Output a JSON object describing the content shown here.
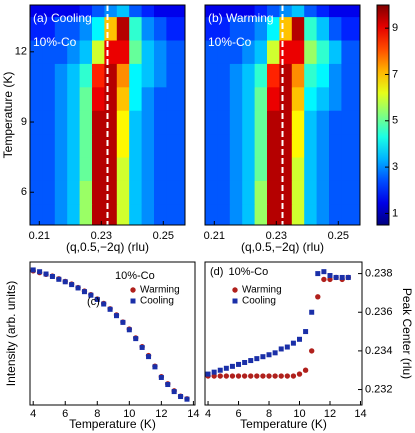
{
  "chart_data": [
    {
      "type": "heatmap",
      "panel_label": "(a) Cooling",
      "sample_label": "10%-Co",
      "x_label": "(q,0.5,−2q) (rlu)",
      "y_label": "Temperature (K)",
      "xlim": [
        0.207,
        0.257
      ],
      "xticks": [
        0.21,
        0.23,
        0.25
      ],
      "ylim": [
        4.6,
        14
      ],
      "yticks": [
        6,
        9,
        12
      ],
      "vline_x": 0.232,
      "x": [
        0.209,
        0.213,
        0.217,
        0.221,
        0.225,
        0.229,
        0.233,
        0.237,
        0.241,
        0.245,
        0.249,
        0.253,
        0.257
      ],
      "y": [
        5,
        6,
        7,
        8,
        9,
        10,
        11,
        12,
        13,
        14
      ],
      "z": [
        [
          2.5,
          2.5,
          3,
          3.5,
          5.5,
          9.5,
          9.5,
          6,
          3.5,
          3,
          2.5,
          2.5,
          2.5
        ],
        [
          2.5,
          2.5,
          3,
          3.5,
          5.5,
          9.5,
          9.5,
          6,
          3.5,
          3,
          2.5,
          2.5,
          2.5
        ],
        [
          2.5,
          2.5,
          3,
          3.5,
          5,
          9.5,
          9.5,
          6,
          3.5,
          3,
          2.5,
          2.5,
          2.5
        ],
        [
          2.5,
          2.5,
          3,
          3.5,
          5,
          9.5,
          9.5,
          6.5,
          3.5,
          3,
          2.5,
          2.5,
          2.5
        ],
        [
          2.5,
          2.5,
          3,
          3.5,
          5,
          9.5,
          9.5,
          6.5,
          3.5,
          3,
          2.5,
          2.5,
          2.5
        ],
        [
          2.5,
          2.5,
          3,
          3.5,
          5,
          9,
          9.5,
          7,
          4,
          3,
          2.5,
          2.5,
          2.5
        ],
        [
          2.5,
          2.5,
          3,
          3.5,
          4.5,
          8.5,
          9.5,
          7.5,
          4,
          3.5,
          3,
          2.5,
          2.5
        ],
        [
          2.5,
          2.5,
          2.5,
          3,
          3.5,
          6,
          9,
          9,
          5,
          3.5,
          3,
          2.5,
          2.5
        ],
        [
          2,
          2,
          2.5,
          2.5,
          3,
          4,
          7,
          9.5,
          4.5,
          3,
          2.5,
          2,
          2
        ],
        [
          1.5,
          1.5,
          1.5,
          1.5,
          2,
          2.5,
          3,
          3.5,
          2.5,
          2,
          1.5,
          1.5,
          1.5
        ]
      ]
    },
    {
      "type": "heatmap",
      "panel_label": "(b) Warming",
      "sample_label": "10%-Co",
      "x_label": "(q,0.5,−2q) (rlu)",
      "xlim": [
        0.207,
        0.257
      ],
      "xticks": [
        0.21,
        0.23,
        0.25
      ],
      "ylim": [
        4.6,
        14
      ],
      "vline_x": 0.232,
      "x": [
        0.209,
        0.213,
        0.217,
        0.221,
        0.225,
        0.229,
        0.233,
        0.237,
        0.241,
        0.245,
        0.249,
        0.253,
        0.257
      ],
      "y": [
        5,
        6,
        7,
        8,
        9,
        10,
        11,
        12,
        13,
        14
      ],
      "z": [
        [
          2.5,
          2.5,
          3,
          3.5,
          5.5,
          9.5,
          9.5,
          6,
          3.5,
          3,
          2.5,
          2.5,
          2.5
        ],
        [
          2.5,
          2.5,
          3,
          3.5,
          5.5,
          9.5,
          9.5,
          6,
          3.5,
          3,
          2.5,
          2.5,
          2.5
        ],
        [
          2.5,
          2.5,
          3,
          3.5,
          5,
          9.5,
          9.5,
          6,
          3.5,
          3,
          2.5,
          2.5,
          2.5
        ],
        [
          2.5,
          2.5,
          3,
          3.5,
          5,
          9.5,
          9.5,
          6.5,
          3.5,
          3,
          2.5,
          2.5,
          2.5
        ],
        [
          2.5,
          2.5,
          3,
          3.5,
          5,
          9.5,
          9.5,
          6.5,
          3.5,
          3,
          2.5,
          2.5,
          2.5
        ],
        [
          2.5,
          2.5,
          3,
          3.5,
          5,
          9,
          9.5,
          7,
          4,
          3.5,
          3,
          2.5,
          2.5
        ],
        [
          2.5,
          2.5,
          3,
          3.5,
          4.5,
          8.5,
          9.5,
          7.5,
          4.5,
          4,
          3,
          2.5,
          2.5
        ],
        [
          2.5,
          2.5,
          2.5,
          3,
          3.5,
          6,
          9,
          9,
          5.5,
          4.5,
          3.5,
          2.5,
          2.5
        ],
        [
          2,
          2,
          2.5,
          2.5,
          3,
          4,
          7,
          9.5,
          4.5,
          3.5,
          2.5,
          2,
          2
        ],
        [
          1.5,
          1.5,
          1.5,
          1.5,
          2,
          2.5,
          3,
          3.5,
          2.5,
          2,
          1.5,
          1.5,
          1.5
        ]
      ]
    },
    {
      "type": "colorbar",
      "colormap": "jet",
      "zlim": [
        0.5,
        10
      ],
      "zticks": [
        1,
        3,
        5,
        7,
        9
      ]
    },
    {
      "type": "scatter",
      "panel_label": "(c)",
      "sample_label": "10%-Co",
      "x_label": "Temperature (K)",
      "y_label": "Intensity (arb. units)",
      "xlim": [
        3.8,
        14.1
      ],
      "xticks": [
        4,
        6,
        8,
        10,
        12,
        14
      ],
      "ylim": [
        -3,
        78
      ],
      "legend": "upper right",
      "series": [
        {
          "name": "Warming",
          "color": "#b0201c",
          "marker": "circle",
          "x": [
            4,
            4.4,
            4.8,
            5.2,
            5.6,
            6,
            6.4,
            6.8,
            7.2,
            7.6,
            8,
            8.4,
            8.8,
            9.2,
            9.6,
            10,
            10.4,
            10.8,
            11.2,
            11.6,
            12,
            12.4,
            12.8,
            13.2,
            13.6
          ],
          "values": [
            73,
            72,
            71,
            70,
            68.5,
            67,
            65.5,
            63.5,
            61.5,
            59.5,
            57,
            54.5,
            51.5,
            48,
            44,
            40,
            35,
            30,
            25,
            19,
            13,
            9,
            5,
            2,
            0.5
          ]
        },
        {
          "name": "Cooling",
          "color": "#1a2fa8",
          "marker": "square",
          "x": [
            4,
            4.4,
            4.8,
            5.2,
            5.6,
            6,
            6.4,
            6.8,
            7.2,
            7.6,
            8,
            8.4,
            8.8,
            9.2,
            9.6,
            10,
            10.4,
            10.8,
            11.2,
            11.6,
            12,
            12.4,
            12.8,
            13.2,
            13.6
          ],
          "values": [
            73.5,
            72.5,
            71.2,
            69.8,
            68.2,
            66.8,
            65.2,
            63.3,
            61.2,
            59.2,
            56.8,
            54.2,
            51.2,
            47.6,
            43.8,
            39.6,
            34.6,
            29.6,
            24.4,
            18.6,
            12.6,
            8.6,
            4.6,
            1.8,
            0.3
          ]
        }
      ]
    },
    {
      "type": "scatter",
      "panel_label": "(d)",
      "sample_label": "10%-Co",
      "x_label": "Temperature (K)",
      "y2_label": "Peak Center (rlu)",
      "xlim": [
        3.8,
        14.1
      ],
      "xticks": [
        4,
        6,
        8,
        10,
        12,
        14
      ],
      "y2lim": [
        0.2312,
        0.2386
      ],
      "y2ticks": [
        0.232,
        0.234,
        0.236,
        0.238
      ],
      "legend": "upper left",
      "series": [
        {
          "name": "Warming",
          "color": "#b0201c",
          "marker": "circle",
          "axis": "y2",
          "x": [
            4,
            4.4,
            4.8,
            5.2,
            5.6,
            6,
            6.4,
            6.8,
            7.2,
            7.6,
            8,
            8.4,
            8.8,
            9.2,
            9.6,
            10,
            10.4,
            10.8,
            11.2,
            11.6,
            12,
            12.4,
            12.8,
            13.2
          ],
          "values": [
            0.2327,
            0.2327,
            0.2327,
            0.2327,
            0.2327,
            0.2327,
            0.2327,
            0.2327,
            0.2327,
            0.2327,
            0.2327,
            0.2327,
            0.2327,
            0.2327,
            0.2327,
            0.2328,
            0.233,
            0.234,
            0.2368,
            0.2377,
            0.2377,
            0.2378,
            0.2377,
            0.2378
          ]
        },
        {
          "name": "Cooling",
          "color": "#1a2fa8",
          "marker": "square",
          "axis": "y2",
          "x": [
            4,
            4.4,
            4.8,
            5.2,
            5.6,
            6,
            6.4,
            6.8,
            7.2,
            7.6,
            8,
            8.4,
            8.8,
            9.2,
            9.6,
            10,
            10.4,
            10.8,
            11.2,
            11.6,
            12,
            12.4,
            12.8,
            13.2
          ],
          "values": [
            0.2328,
            0.2329,
            0.233,
            0.2331,
            0.2332,
            0.2333,
            0.2334,
            0.2335,
            0.2336,
            0.2337,
            0.2338,
            0.2339,
            0.2341,
            0.2342,
            0.2344,
            0.2346,
            0.235,
            0.236,
            0.238,
            0.2381,
            0.2379,
            0.2378,
            0.2378,
            0.2378
          ]
        }
      ]
    }
  ]
}
